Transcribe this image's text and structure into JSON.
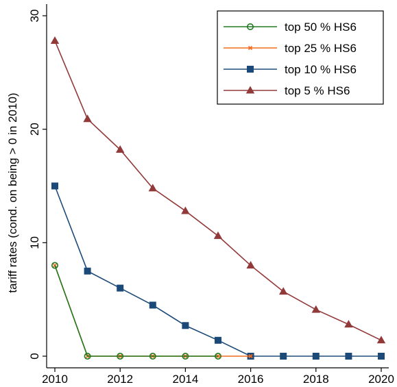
{
  "chart_data": {
    "type": "line",
    "title": "",
    "xlabel": "",
    "ylabel": "tariff rates (cond. on being > 0 in 2010)",
    "xlim": [
      2010,
      2020
    ],
    "ylim": [
      0,
      30
    ],
    "xticks": [
      2010,
      2012,
      2014,
      2016,
      2018,
      2020
    ],
    "yticks": [
      0,
      10,
      20,
      30
    ],
    "grid": false,
    "legend_position": "top-right",
    "series": [
      {
        "name": "top 50 % HS6",
        "color": "#1e7a1e",
        "marker": "open-circle",
        "x": [
          2010,
          2011,
          2012,
          2013,
          2014,
          2015
        ],
        "y": [
          8,
          0,
          0,
          0,
          0,
          0
        ]
      },
      {
        "name": "top 25 % HS6",
        "color": "#f26b1d",
        "marker": "x",
        "x": [
          2010,
          2011,
          2012,
          2013,
          2014,
          2015,
          2016
        ],
        "y": [
          8,
          0,
          0,
          0,
          0,
          0,
          0
        ]
      },
      {
        "name": "top 10 % HS6",
        "color": "#1b4a78",
        "marker": "square",
        "x": [
          2010,
          2011,
          2012,
          2013,
          2014,
          2015,
          2016,
          2017,
          2018,
          2019,
          2020
        ],
        "y": [
          15,
          7.5,
          6,
          4.5,
          2.7,
          1.4,
          0,
          0,
          0,
          0,
          0
        ]
      },
      {
        "name": "top 5 % HS6",
        "color": "#923a3a",
        "marker": "triangle",
        "x": [
          2010,
          2011,
          2012,
          2013,
          2014,
          2015,
          2016,
          2017,
          2018,
          2019,
          2020
        ],
        "y": [
          27.8,
          20.9,
          18.2,
          14.8,
          12.8,
          10.6,
          8,
          5.7,
          4.1,
          2.8,
          1.4
        ]
      }
    ]
  }
}
